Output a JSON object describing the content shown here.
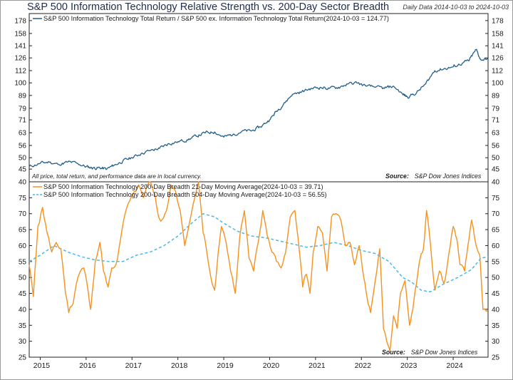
{
  "header": {
    "title": "S&P 500 Information Technology Relative Strength vs. 200-Day Sector Breadth",
    "subtitle": "Daily Data 2014-10-03 to 2024-10-03"
  },
  "chart_data": [
    {
      "type": "line",
      "scale": "log",
      "ylim": [
        40,
        190
      ],
      "yticks": [
        40,
        45,
        50,
        56,
        63,
        71,
        79,
        89,
        100,
        112,
        126,
        141,
        158,
        178
      ],
      "series": [
        {
          "name": "S&P 500 Information Technology Total Return / S&P 500 ex. Information Technology Total Return(2024-10-03 = 124.77)",
          "color": "#1f5f8b",
          "x": [
            2014.76,
            2015.0,
            2015.2,
            2015.4,
            2015.6,
            2015.8,
            2016.0,
            2016.15,
            2016.3,
            2016.45,
            2016.6,
            2016.8,
            2017.0,
            2017.2,
            2017.4,
            2017.6,
            2017.8,
            2018.0,
            2018.2,
            2018.4,
            2018.6,
            2018.8,
            2019.0,
            2019.2,
            2019.4,
            2019.6,
            2019.8,
            2020.0,
            2020.15,
            2020.3,
            2020.5,
            2020.7,
            2020.9,
            2021.1,
            2021.3,
            2021.5,
            2021.7,
            2021.9,
            2022.1,
            2022.3,
            2022.5,
            2022.7,
            2022.9,
            2023.0,
            2023.2,
            2023.4,
            2023.6,
            2023.8,
            2024.0,
            2024.2,
            2024.35,
            2024.5,
            2024.6,
            2024.76
          ],
          "values": [
            46,
            47.5,
            48,
            47,
            48,
            47.5,
            46,
            45.5,
            45.5,
            45,
            46.5,
            48.5,
            50,
            52,
            53.5,
            54.5,
            57,
            58,
            59,
            61,
            63,
            63.5,
            60.5,
            62,
            64,
            64,
            66.5,
            71,
            77,
            82,
            90,
            92,
            95,
            96,
            95,
            96,
            99,
            100,
            97,
            96,
            95,
            97,
            90,
            88,
            91,
            99,
            112,
            114,
            116,
            120,
            123,
            136,
            124,
            124.77
          ]
        }
      ],
      "note": "All price, total return, and performance data are in local currency.",
      "source_label": "Source:",
      "source_text": "S&P Dow Jones Indices"
    },
    {
      "type": "line",
      "ylim": [
        25,
        80
      ],
      "yticks": [
        25,
        30,
        35,
        40,
        45,
        50,
        55,
        60,
        65,
        70,
        75
      ],
      "x_ticks": [
        "2015",
        "2016",
        "2017",
        "2018",
        "2019",
        "2020",
        "2021",
        "2022",
        "2023",
        "2024"
      ],
      "series": [
        {
          "name": "S&P 500 Information Technology 200-Day Breadth 21-Day Moving Average(2024-10-03 = 39.71)",
          "color": "#f5921e",
          "dash": false,
          "x": [
            2014.76,
            2014.85,
            2014.95,
            2015.05,
            2015.15,
            2015.25,
            2015.35,
            2015.45,
            2015.55,
            2015.62,
            2015.72,
            2015.82,
            2015.95,
            2016.05,
            2016.1,
            2016.2,
            2016.3,
            2016.38,
            2016.48,
            2016.56,
            2016.65,
            2016.75,
            2016.85,
            2016.95,
            2017.05,
            2017.15,
            2017.25,
            2017.32,
            2017.4,
            2017.5,
            2017.58,
            2017.65,
            2017.75,
            2017.85,
            2017.95,
            2018.05,
            2018.15,
            2018.25,
            2018.35,
            2018.45,
            2018.55,
            2018.62,
            2018.72,
            2018.8,
            2018.88,
            2018.95,
            2019.05,
            2019.15,
            2019.25,
            2019.35,
            2019.45,
            2019.55,
            2019.65,
            2019.75,
            2019.85,
            2019.95,
            2020.05,
            2020.15,
            2020.25,
            2020.35,
            2020.45,
            2020.55,
            2020.65,
            2020.72,
            2020.8,
            2020.88,
            2020.95,
            2021.05,
            2021.15,
            2021.25,
            2021.35,
            2021.45,
            2021.55,
            2021.65,
            2021.75,
            2021.85,
            2021.95,
            2022.05,
            2022.12,
            2022.2,
            2022.3,
            2022.4,
            2022.48,
            2022.55,
            2022.62,
            2022.7,
            2022.78,
            2022.85,
            2022.95,
            2023.05,
            2023.12,
            2023.2,
            2023.28,
            2023.35,
            2023.42,
            2023.5,
            2023.6,
            2023.7,
            2023.8,
            2023.9,
            2024.0,
            2024.08,
            2024.15,
            2024.25,
            2024.32,
            2024.4,
            2024.5,
            2024.58,
            2024.65,
            2024.76
          ],
          "values": [
            54,
            44,
            66,
            72,
            64,
            58,
            61,
            59,
            45,
            39,
            42,
            50,
            53,
            45,
            40,
            55,
            61,
            52,
            47,
            53,
            54,
            62,
            70,
            74,
            77,
            79,
            75,
            79,
            80,
            76,
            69,
            68,
            71,
            79,
            77,
            71,
            60,
            67,
            74,
            80,
            64,
            59,
            50,
            46,
            58,
            66,
            61,
            52,
            45,
            63,
            71,
            56,
            52,
            61,
            71,
            63,
            58,
            55,
            53,
            58,
            69,
            71,
            58,
            47,
            51,
            45,
            58,
            66,
            64,
            52,
            69,
            70,
            68,
            60,
            61,
            54,
            60,
            50,
            44,
            39,
            49,
            59,
            34,
            30,
            27,
            38,
            34,
            45,
            49,
            35,
            40,
            48,
            56,
            59,
            71,
            61,
            46,
            52,
            48,
            57,
            66,
            62,
            54,
            52,
            60,
            68,
            60,
            57,
            40,
            39.71
          ]
        },
        {
          "name": "S&P 500 Information Technology 200-Day Breadth 504-Day Moving Average(2024-10-03 = 56.55)",
          "color": "#4ab8e8",
          "dash": true,
          "x": [
            2014.76,
            2015.0,
            2015.3,
            2015.6,
            2015.9,
            2016.2,
            2016.5,
            2016.8,
            2017.1,
            2017.4,
            2017.7,
            2018.0,
            2018.3,
            2018.55,
            2018.8,
            2019.0,
            2019.3,
            2019.6,
            2019.9,
            2020.2,
            2020.5,
            2020.8,
            2021.1,
            2021.4,
            2021.7,
            2022.0,
            2022.3,
            2022.6,
            2022.9,
            2023.1,
            2023.3,
            2023.5,
            2023.8,
            2024.1,
            2024.4,
            2024.6,
            2024.76
          ],
          "values": [
            55,
            57,
            60,
            58,
            56.5,
            55.5,
            55,
            55,
            57,
            58,
            60,
            63,
            67,
            70,
            69,
            67,
            64.5,
            63,
            62.5,
            61.5,
            60.5,
            59.5,
            60,
            61,
            60,
            58.5,
            57.5,
            55,
            50,
            48.5,
            46,
            45.5,
            48,
            50,
            52.5,
            56,
            56.55
          ]
        }
      ],
      "source_label": "Source:",
      "source_text": "S&P Dow Jones Indices"
    }
  ]
}
